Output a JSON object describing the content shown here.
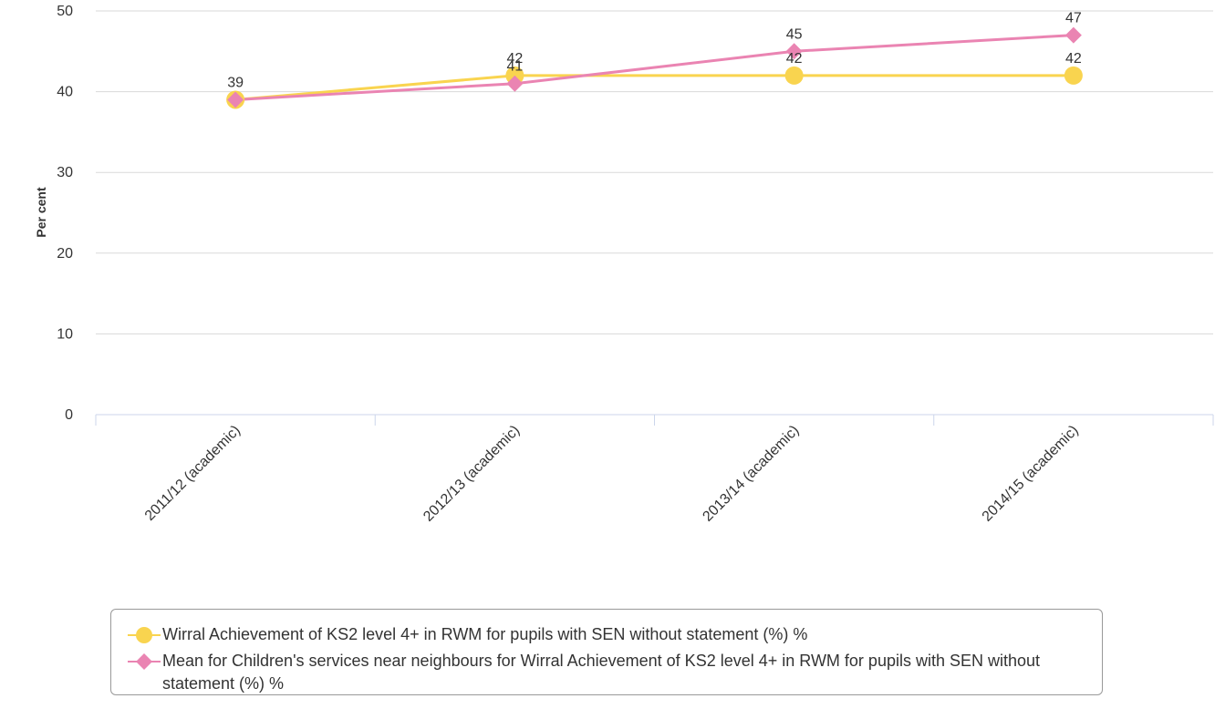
{
  "chart_data": {
    "type": "line",
    "categories": [
      "2011/12 (academic)",
      "2012/13 (academic)",
      "2013/14 (academic)",
      "2014/15 (academic)"
    ],
    "series": [
      {
        "name": "Wirral Achievement of KS2 level 4+ in RWM for pupils with SEN without statement (%) %",
        "values": [
          39,
          42,
          42,
          42
        ],
        "labels": [
          "39",
          "42",
          "42",
          "42"
        ],
        "color": "#f9d44f",
        "marker": "circle"
      },
      {
        "name": "Mean for Children's services near neighbours for Wirral Achievement of KS2 level 4+ in RWM for pupils with SEN without statement (%) %",
        "values": [
          39,
          41,
          45,
          47
        ],
        "labels": [
          "",
          "41",
          "45",
          "47"
        ],
        "color": "#ea84b2",
        "marker": "diamond"
      }
    ],
    "xlabel": "",
    "ylabel": "Per cent",
    "ylim": [
      0,
      50
    ],
    "yticks": [
      "0",
      "10",
      "20",
      "30",
      "40",
      "50"
    ],
    "grid": true,
    "legend": "bottom"
  }
}
